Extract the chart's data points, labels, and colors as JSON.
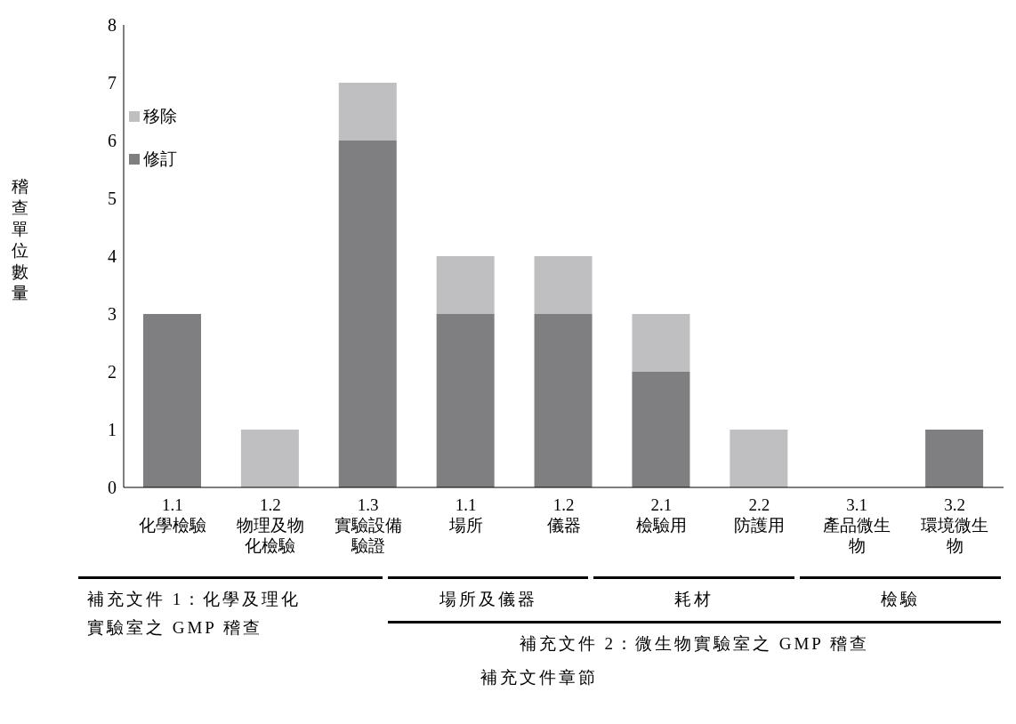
{
  "chart_data": {
    "type": "bar",
    "stacked": true,
    "categories": [
      "1.1 化學檢驗",
      "1.2 物理及物化檢驗",
      "1.3 實驗設備驗證",
      "1.1 場所",
      "1.2 儀器",
      "2.1 檢驗用",
      "2.2 防護用",
      "3.1 產品微生物",
      "3.2 環境微生物"
    ],
    "series": [
      {
        "name": "修訂",
        "color": "#7f7f82",
        "values": [
          3,
          0,
          6,
          3,
          3,
          2,
          0,
          0,
          1
        ]
      },
      {
        "name": "移除",
        "color": "#bfbfc2",
        "values": [
          0,
          1,
          1,
          1,
          1,
          1,
          1,
          0,
          0
        ]
      }
    ],
    "ylim": [
      0,
      8
    ],
    "yticks": [
      0,
      1,
      2,
      3,
      4,
      5,
      6,
      7,
      8
    ],
    "ylabel": "稽查單位數量",
    "legend": "top left",
    "annotations": [
      "場所及儀器",
      "耗材",
      "檢驗",
      "補充文件 1：化學及理化實驗室之 GMP 稽查",
      "補充文件 2：微生物實驗室之 GMP 稽查",
      "補充文件章節"
    ]
  }
}
